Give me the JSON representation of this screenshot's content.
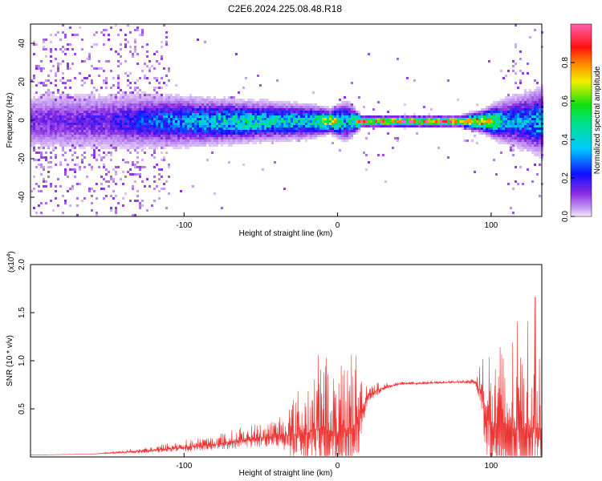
{
  "title": "C2E6.2024.225.08.48.R18",
  "chart_data": [
    {
      "type": "heatmap",
      "xlabel": "Height of straight line (km)",
      "ylabel": "Frequency (Hz)",
      "xlim": [
        -200,
        133
      ],
      "ylim": [
        -50,
        50
      ],
      "xticks": [
        -100,
        0,
        100
      ],
      "yticks": [
        -40,
        -20,
        0,
        20,
        40
      ],
      "colorbar": {
        "label": "Normalized spectral amplitude",
        "range": [
          0,
          1
        ],
        "ticks": [
          "0.0",
          "0.2",
          "0.4",
          "0.6",
          "0.8"
        ]
      },
      "band_profile": {
        "x": [
          -200,
          -150,
          -110,
          -60,
          -20,
          -5,
          5,
          15,
          40,
          80,
          95,
          110,
          133
        ],
        "peak_amplitude": [
          0.15,
          0.18,
          0.35,
          0.5,
          0.45,
          0.85,
          0.4,
          0.9,
          0.95,
          0.9,
          0.9,
          0.35,
          0.4
        ],
        "half_width_hz": [
          10,
          10,
          9,
          7,
          6,
          4,
          7,
          2,
          2,
          2,
          4,
          8,
          12
        ]
      }
    },
    {
      "type": "line",
      "xlabel": "Height of straight line (km)",
      "ylabel": "SNR (10 * v/v)",
      "y_multiplier": "(x10",
      "y_multiplier_exp": "4",
      "y_multiplier_close": ")",
      "xlim": [
        -200,
        133
      ],
      "ylim": [
        0,
        2.0
      ],
      "xticks": [
        -100,
        0,
        100
      ],
      "yticks": [
        "0.5",
        "1.0",
        "1.5",
        "2.0"
      ],
      "color": "#ee3333",
      "envelope": {
        "x": [
          -200,
          -160,
          -140,
          -120,
          -100,
          -80,
          -60,
          -40,
          -20,
          -10,
          0,
          10,
          15,
          20,
          30,
          40,
          60,
          80,
          90,
          95,
          100,
          110,
          120,
          133
        ],
        "base": [
          0.02,
          0.03,
          0.05,
          0.07,
          0.1,
          0.13,
          0.18,
          0.22,
          0.25,
          0.3,
          0.25,
          0.3,
          0.45,
          0.65,
          0.72,
          0.76,
          0.77,
          0.78,
          0.78,
          0.6,
          0.3,
          0.25,
          0.3,
          0.3
        ],
        "spread": [
          0.0,
          0.0,
          0.02,
          0.05,
          0.08,
          0.1,
          0.15,
          0.2,
          0.6,
          0.9,
          0.6,
          1.0,
          0.5,
          0.15,
          0.05,
          0.02,
          0.02,
          0.02,
          0.05,
          0.6,
          0.9,
          1.0,
          1.2,
          1.5
        ]
      }
    }
  ]
}
